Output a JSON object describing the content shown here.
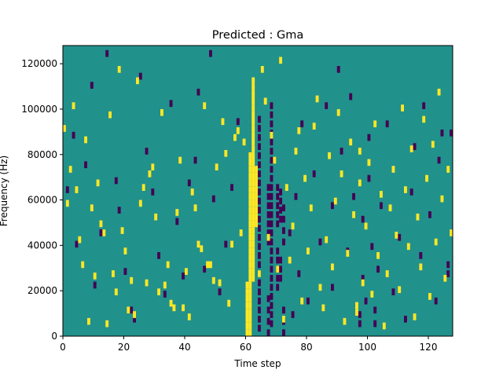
{
  "chart_data": {
    "type": "heatmap",
    "title": "Predicted : Gma",
    "xlabel": "Time step",
    "ylabel": "Frequency (Hz)",
    "xlim": [
      0,
      128
    ],
    "ylim": [
      0,
      128000
    ],
    "xticks": [
      0,
      20,
      40,
      60,
      80,
      100,
      120
    ],
    "yticks": [
      0,
      20000,
      40000,
      60000,
      80000,
      100000,
      120000
    ],
    "colormap": "viridis",
    "colors": {
      "low": "#440154",
      "mid": "#21918c",
      "high": "#fde725"
    },
    "background_value": "mid",
    "grid": false,
    "legend": "none",
    "yellow_cells": [
      [
        0,
        90
      ],
      [
        1,
        57
      ],
      [
        2,
        72
      ],
      [
        3,
        100
      ],
      [
        4,
        63
      ],
      [
        5,
        41
      ],
      [
        6,
        30
      ],
      [
        7,
        85
      ],
      [
        8,
        5
      ],
      [
        9,
        55
      ],
      [
        10,
        25
      ],
      [
        11,
        66
      ],
      [
        12,
        48
      ],
      [
        13,
        44
      ],
      [
        14,
        4
      ],
      [
        15,
        96
      ],
      [
        16,
        26
      ],
      [
        17,
        18
      ],
      [
        18,
        116
      ],
      [
        19,
        45
      ],
      [
        20,
        36
      ],
      [
        21,
        10
      ],
      [
        22,
        23
      ],
      [
        23,
        8
      ],
      [
        24,
        111
      ],
      [
        25,
        57
      ],
      [
        26,
        64
      ],
      [
        27,
        22
      ],
      [
        28,
        70
      ],
      [
        29,
        73
      ],
      [
        30,
        51
      ],
      [
        31,
        18
      ],
      [
        32,
        97
      ],
      [
        33,
        21
      ],
      [
        34,
        30
      ],
      [
        35,
        13
      ],
      [
        36,
        11
      ],
      [
        37,
        53
      ],
      [
        38,
        76
      ],
      [
        39,
        11
      ],
      [
        40,
        27
      ],
      [
        41,
        7
      ],
      [
        42,
        62
      ],
      [
        43,
        55
      ],
      [
        44,
        39
      ],
      [
        45,
        37
      ],
      [
        46,
        100
      ],
      [
        47,
        30
      ],
      [
        48,
        30
      ],
      [
        49,
        23
      ],
      [
        50,
        73
      ],
      [
        51,
        22
      ],
      [
        52,
        93
      ],
      [
        53,
        79
      ],
      [
        54,
        13
      ],
      [
        55,
        39
      ],
      [
        56,
        86
      ],
      [
        57,
        89
      ],
      [
        58,
        44
      ],
      [
        59,
        84
      ],
      [
        60,
        0
      ],
      [
        60,
        3
      ],
      [
        60,
        6
      ],
      [
        60,
        9
      ],
      [
        60,
        12
      ],
      [
        60,
        15
      ],
      [
        60,
        18
      ],
      [
        60,
        21
      ],
      [
        61,
        0
      ],
      [
        61,
        3
      ],
      [
        61,
        6
      ],
      [
        61,
        9
      ],
      [
        61,
        12
      ],
      [
        61,
        15
      ],
      [
        61,
        18
      ],
      [
        61,
        21
      ],
      [
        61,
        24
      ],
      [
        61,
        27
      ],
      [
        61,
        30
      ],
      [
        61,
        33
      ],
      [
        61,
        36
      ],
      [
        61,
        39
      ],
      [
        61,
        42
      ],
      [
        61,
        45
      ],
      [
        61,
        48
      ],
      [
        61,
        51
      ],
      [
        61,
        54
      ],
      [
        61,
        57
      ],
      [
        61,
        60
      ],
      [
        61,
        63
      ],
      [
        61,
        66
      ],
      [
        61,
        69
      ],
      [
        61,
        72
      ],
      [
        61,
        75
      ],
      [
        61,
        78
      ],
      [
        62,
        24
      ],
      [
        62,
        27
      ],
      [
        62,
        30
      ],
      [
        62,
        33
      ],
      [
        62,
        36
      ],
      [
        62,
        39
      ],
      [
        62,
        42
      ],
      [
        62,
        45
      ],
      [
        62,
        48
      ],
      [
        62,
        51
      ],
      [
        62,
        54
      ],
      [
        62,
        57
      ],
      [
        62,
        60
      ],
      [
        62,
        63
      ],
      [
        62,
        66
      ],
      [
        62,
        69
      ],
      [
        62,
        72
      ],
      [
        62,
        75
      ],
      [
        62,
        78
      ],
      [
        62,
        81
      ],
      [
        62,
        84
      ],
      [
        62,
        87
      ],
      [
        62,
        90
      ],
      [
        62,
        93
      ],
      [
        62,
        96
      ],
      [
        62,
        99
      ],
      [
        62,
        102
      ],
      [
        62,
        105
      ],
      [
        62,
        108
      ],
      [
        62,
        111
      ],
      [
        63,
        48
      ],
      [
        63,
        51
      ],
      [
        63,
        54
      ],
      [
        63,
        57
      ],
      [
        63,
        60
      ],
      [
        63,
        63
      ],
      [
        63,
        66
      ],
      [
        63,
        69
      ],
      [
        63,
        72
      ],
      [
        64,
        26
      ],
      [
        65,
        116
      ],
      [
        66,
        102
      ],
      [
        67,
        42
      ],
      [
        68,
        87
      ],
      [
        69,
        76
      ],
      [
        70,
        28
      ],
      [
        71,
        120
      ],
      [
        72,
        6
      ],
      [
        73,
        64
      ],
      [
        74,
        32
      ],
      [
        75,
        47
      ],
      [
        76,
        80
      ],
      [
        77,
        89
      ],
      [
        78,
        14
      ],
      [
        79,
        68
      ],
      [
        80,
        36
      ],
      [
        81,
        55
      ],
      [
        82,
        91
      ],
      [
        83,
        103
      ],
      [
        84,
        20
      ],
      [
        85,
        11
      ],
      [
        86,
        41
      ],
      [
        87,
        78
      ],
      [
        88,
        29
      ],
      [
        89,
        58
      ],
      [
        90,
        97
      ],
      [
        91,
        70
      ],
      [
        92,
        5
      ],
      [
        93,
        35
      ],
      [
        94,
        84
      ],
      [
        95,
        52
      ],
      [
        96,
        12
      ],
      [
        96,
        9
      ],
      [
        97,
        66
      ],
      [
        97,
        80
      ],
      [
        98,
        22
      ],
      [
        99,
        47
      ],
      [
        100,
        75
      ],
      [
        101,
        17
      ],
      [
        102,
        92
      ],
      [
        103,
        34
      ],
      [
        104,
        61
      ],
      [
        105,
        3
      ],
      [
        106,
        26
      ],
      [
        107,
        55
      ],
      [
        108,
        72
      ],
      [
        109,
        43
      ],
      [
        110,
        19
      ],
      [
        111,
        99
      ],
      [
        112,
        63
      ],
      [
        113,
        38
      ],
      [
        114,
        81
      ],
      [
        115,
        7
      ],
      [
        116,
        51
      ],
      [
        117,
        29
      ],
      [
        118,
        94
      ],
      [
        119,
        68
      ],
      [
        120,
        16
      ],
      [
        121,
        83
      ],
      [
        122,
        40
      ],
      [
        123,
        106
      ],
      [
        124,
        59
      ],
      [
        125,
        24
      ],
      [
        126,
        72
      ],
      [
        127,
        44
      ]
    ],
    "purple_cells": [
      [
        1,
        63
      ],
      [
        3,
        87
      ],
      [
        4,
        39
      ],
      [
        7,
        74
      ],
      [
        9,
        109
      ],
      [
        10,
        21
      ],
      [
        12,
        44
      ],
      [
        14,
        123
      ],
      [
        17,
        67
      ],
      [
        18,
        54
      ],
      [
        20,
        27
      ],
      [
        22,
        10
      ],
      [
        23,
        6
      ],
      [
        25,
        113
      ],
      [
        27,
        80
      ],
      [
        29,
        62
      ],
      [
        31,
        34
      ],
      [
        33,
        17
      ],
      [
        35,
        101
      ],
      [
        37,
        49
      ],
      [
        39,
        25
      ],
      [
        41,
        66
      ],
      [
        43,
        76
      ],
      [
        44,
        106
      ],
      [
        46,
        28
      ],
      [
        48,
        123
      ],
      [
        49,
        59
      ],
      [
        51,
        18
      ],
      [
        53,
        39
      ],
      [
        55,
        64
      ],
      [
        57,
        93
      ],
      [
        64,
        2
      ],
      [
        64,
        6
      ],
      [
        64,
        10
      ],
      [
        64,
        14
      ],
      [
        64,
        18
      ],
      [
        64,
        22
      ],
      [
        64,
        26
      ],
      [
        64,
        30
      ],
      [
        64,
        34
      ],
      [
        64,
        38
      ],
      [
        64,
        42
      ],
      [
        64,
        46
      ],
      [
        64,
        50
      ],
      [
        64,
        54
      ],
      [
        64,
        58
      ],
      [
        64,
        62
      ],
      [
        64,
        66
      ],
      [
        64,
        70
      ],
      [
        64,
        74
      ],
      [
        64,
        78
      ],
      [
        64,
        82
      ],
      [
        64,
        86
      ],
      [
        64,
        90
      ],
      [
        64,
        94
      ],
      [
        67,
        0
      ],
      [
        67,
        5
      ],
      [
        67,
        10
      ],
      [
        67,
        15
      ],
      [
        67,
        40
      ],
      [
        67,
        44
      ],
      [
        67,
        48
      ],
      [
        67,
        52
      ],
      [
        67,
        56
      ],
      [
        67,
        60
      ],
      [
        67,
        64
      ],
      [
        68,
        4
      ],
      [
        68,
        8
      ],
      [
        68,
        12
      ],
      [
        68,
        16
      ],
      [
        68,
        20
      ],
      [
        68,
        24
      ],
      [
        68,
        28
      ],
      [
        68,
        32
      ],
      [
        68,
        36
      ],
      [
        68,
        40
      ],
      [
        68,
        44
      ],
      [
        68,
        48
      ],
      [
        68,
        52
      ],
      [
        68,
        56
      ],
      [
        68,
        60
      ],
      [
        68,
        64
      ],
      [
        68,
        68
      ],
      [
        68,
        72
      ],
      [
        68,
        76
      ],
      [
        68,
        80
      ],
      [
        68,
        84
      ],
      [
        68,
        88
      ],
      [
        68,
        92
      ],
      [
        68,
        96
      ],
      [
        68,
        100
      ],
      [
        70,
        20
      ],
      [
        70,
        24
      ],
      [
        70,
        28
      ],
      [
        70,
        32
      ],
      [
        70,
        36
      ],
      [
        70,
        48
      ],
      [
        70,
        52
      ],
      [
        70,
        56
      ],
      [
        70,
        60
      ],
      [
        70,
        64
      ],
      [
        71,
        24
      ],
      [
        71,
        28
      ],
      [
        71,
        32
      ],
      [
        71,
        50
      ],
      [
        71,
        54
      ],
      [
        71,
        58
      ],
      [
        71,
        62
      ],
      [
        72,
        0
      ],
      [
        72,
        5
      ],
      [
        72,
        10
      ],
      [
        72,
        40
      ],
      [
        72,
        45
      ],
      [
        72,
        50
      ],
      [
        72,
        55
      ],
      [
        74,
        44
      ],
      [
        75,
        8
      ],
      [
        76,
        60
      ],
      [
        77,
        26
      ],
      [
        78,
        92
      ],
      [
        80,
        14
      ],
      [
        82,
        70
      ],
      [
        84,
        40
      ],
      [
        86,
        100
      ],
      [
        88,
        20
      ],
      [
        88,
        56
      ],
      [
        90,
        116
      ],
      [
        91,
        80
      ],
      [
        93,
        36
      ],
      [
        94,
        104
      ],
      [
        95,
        60
      ],
      [
        97,
        4
      ],
      [
        97,
        8
      ],
      [
        98,
        50
      ],
      [
        98,
        24
      ],
      [
        99,
        14
      ],
      [
        100,
        68
      ],
      [
        100,
        86
      ],
      [
        101,
        38
      ],
      [
        102,
        10
      ],
      [
        102,
        4
      ],
      [
        103,
        28
      ],
      [
        104,
        56
      ],
      [
        106,
        92
      ],
      [
        108,
        18
      ],
      [
        110,
        42
      ],
      [
        112,
        6
      ],
      [
        114,
        62
      ],
      [
        115,
        82
      ],
      [
        117,
        34
      ],
      [
        118,
        100
      ],
      [
        120,
        52
      ],
      [
        122,
        14
      ],
      [
        123,
        76
      ],
      [
        124,
        88
      ],
      [
        126,
        30
      ],
      [
        126,
        26
      ],
      [
        127,
        88
      ]
    ]
  }
}
